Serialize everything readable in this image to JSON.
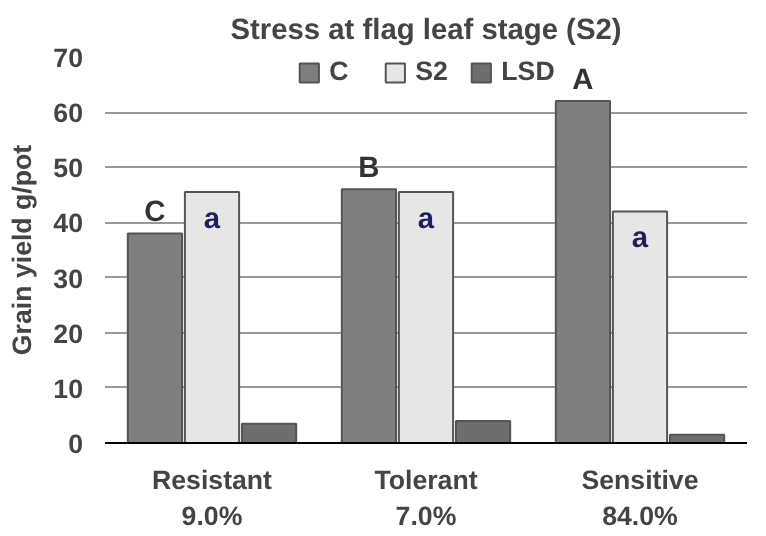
{
  "chart_data": {
    "type": "bar",
    "title": "Stress at flag leaf stage (S2)",
    "ylabel": "Grain yield g/pot",
    "categories": [
      "Resistant\n9.0%",
      "Tolerant\n7.0%",
      "Sensitive\n84.0%"
    ],
    "series": [
      {
        "name": "C",
        "color": "#7f7f7f",
        "values": [
          38,
          46,
          62
        ]
      },
      {
        "name": "S2",
        "color": "#e6e6e6",
        "values": [
          45.5,
          45.5,
          42
        ]
      },
      {
        "name": "LSD",
        "color": "#6e6e6e",
        "values": [
          3.5,
          4,
          1.5
        ]
      }
    ],
    "ylim": [
      0,
      70
    ],
    "yticks": [
      0,
      10,
      20,
      30,
      40,
      50,
      60,
      70
    ],
    "grid": "y",
    "legend": "top",
    "annotations": [
      "C",
      "a",
      "B",
      "a",
      "A",
      "a"
    ]
  }
}
